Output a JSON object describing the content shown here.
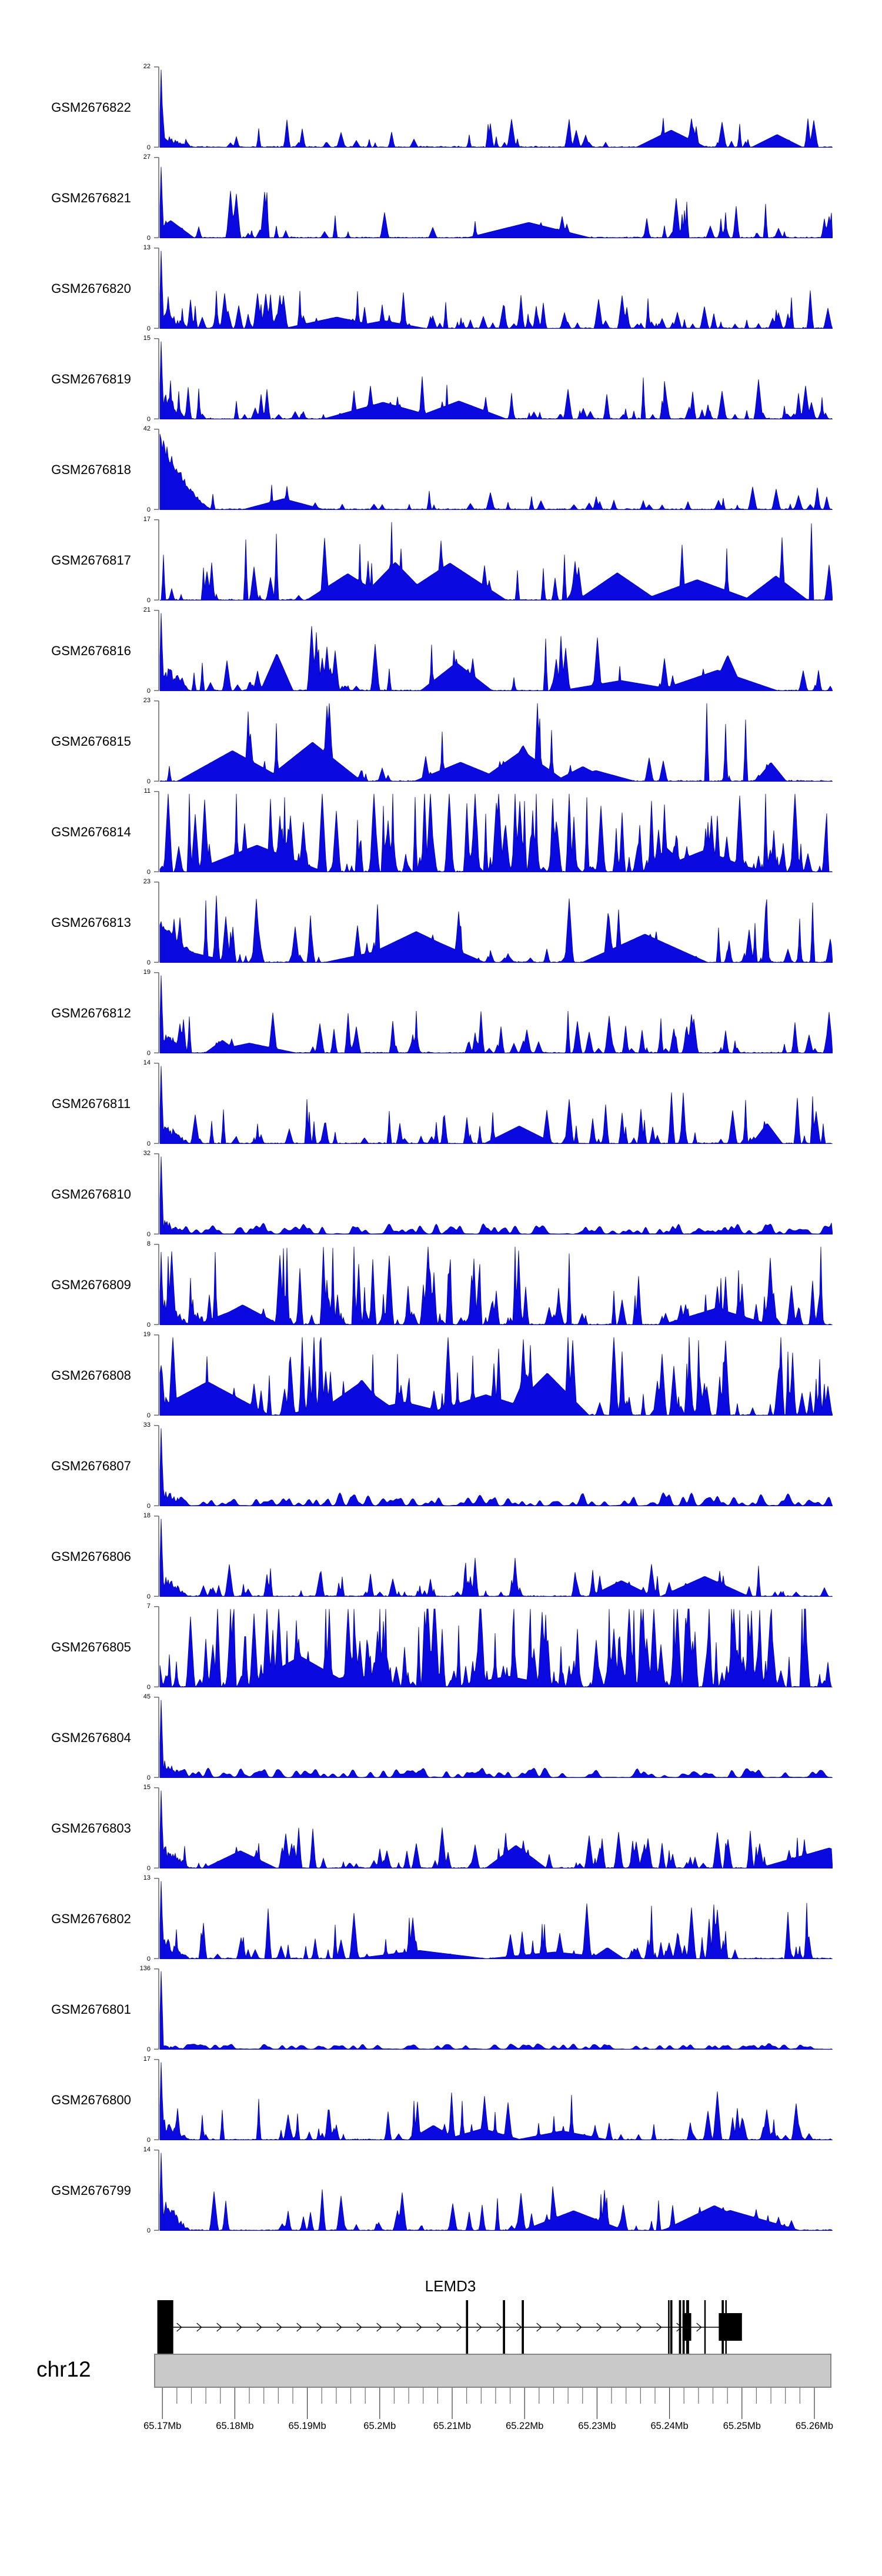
{
  "figure_type": "genome-browser-coverage-figure",
  "chart_data": {
    "type": "area",
    "title": "",
    "y_min_label": "0",
    "tracks": [
      {
        "label": "GSM2676822",
        "ymax": 22,
        "style": {
          "seed": 20,
          "left": "spike",
          "leftH": 0.96,
          "tail": 0.22,
          "density": 0.55,
          "amp": 0.3,
          "mounds": 2,
          "moundAmp": 0.4
        }
      },
      {
        "label": "GSM2676821",
        "ymax": 27,
        "style": {
          "seed": 31,
          "left": "spike",
          "leftH": 0.88,
          "tail": 0.3,
          "density": 0.55,
          "amp": 0.42,
          "mounds": 2,
          "moundAmp": 0.4
        }
      },
      {
        "label": "GSM2676820",
        "ymax": 13,
        "style": {
          "seed": 42,
          "left": "spike",
          "leftH": 0.96,
          "tail": 0.3,
          "density": 1.15,
          "amp": 0.33,
          "mounds": 2,
          "moundAmp": 0.4
        }
      },
      {
        "label": "GSM2676819",
        "ymax": 15,
        "style": {
          "seed": 53,
          "left": "spike",
          "leftH": 0.96,
          "tail": 0.4,
          "density": 0.95,
          "amp": 0.38,
          "mounds": 3,
          "moundAmp": 0.45
        }
      },
      {
        "label": "GSM2676818",
        "ymax": 42,
        "style": {
          "seed": 64,
          "left": "mound",
          "leftH": 0.97,
          "tail": 0.3,
          "density": 0.45,
          "amp": 0.22,
          "mounds": 1,
          "moundAmp": 0.35
        }
      },
      {
        "label": "GSM2676817",
        "ymax": 17,
        "style": {
          "seed": 75,
          "left": "none",
          "tail": 0,
          "density": 0.6,
          "amp": 0.85,
          "mounds": 7,
          "moundAmp": 0.85,
          "right": true
        }
      },
      {
        "label": "GSM2676816",
        "ymax": 21,
        "style": {
          "seed": 86,
          "left": "spike",
          "leftH": 0.96,
          "tail": 0.5,
          "density": 0.6,
          "amp": 0.6,
          "mounds": 5,
          "moundAmp": 0.8
        }
      },
      {
        "label": "GSM2676815",
        "ymax": 23,
        "style": {
          "seed": 97,
          "left": "none",
          "tail": 0,
          "density": 0.38,
          "amp": 1.0,
          "mounds": 9,
          "moundAmp": 0.85
        }
      },
      {
        "label": "GSM2676814",
        "ymax": 11,
        "style": {
          "seed": 108,
          "left": "none",
          "tail": 0,
          "density": 2.1,
          "amp": 0.9,
          "mounds": 4,
          "moundAmp": 0.6
        }
      },
      {
        "label": "GSM2676813",
        "ymax": 23,
        "style": {
          "seed": 119,
          "left": "mound",
          "leftH": 0.55,
          "tail": 0.4,
          "density": 0.9,
          "amp": 0.62,
          "mounds": 5,
          "moundAmp": 0.65
        }
      },
      {
        "label": "GSM2676812",
        "ymax": 19,
        "style": {
          "seed": 130,
          "left": "spike",
          "leftH": 0.96,
          "tail": 0.35,
          "density": 0.8,
          "amp": 0.4,
          "mounds": 2,
          "moundAmp": 0.45
        }
      },
      {
        "label": "GSM2676811",
        "ymax": 14,
        "style": {
          "seed": 141,
          "left": "spike",
          "leftH": 0.96,
          "tail": 0.35,
          "density": 0.85,
          "amp": 0.46,
          "mounds": 2,
          "moundAmp": 0.45
        }
      },
      {
        "label": "GSM2676810",
        "ymax": 32,
        "style": {
          "seed": 152,
          "left": "spike",
          "leftH": 0.96,
          "tail": 0.22,
          "density": 1.2,
          "amp": 0.11,
          "mounds": 0,
          "smooth": true
        }
      },
      {
        "label": "GSM2676809",
        "ymax": 8,
        "style": {
          "seed": 163,
          "left": "spike",
          "leftH": 0.9,
          "tail": 0.45,
          "density": 1.5,
          "amp": 0.78,
          "mounds": 3,
          "moundAmp": 0.7
        }
      },
      {
        "label": "GSM2676808",
        "ymax": 19,
        "style": {
          "seed": 174,
          "left": "spike",
          "leftH": 0.62,
          "tail": 0.5,
          "density": 1.3,
          "amp": 0.88,
          "mounds": 8,
          "moundAmp": 0.9
        }
      },
      {
        "label": "GSM2676807",
        "ymax": 33,
        "style": {
          "seed": 185,
          "left": "spike",
          "leftH": 0.96,
          "tail": 0.26,
          "density": 1.2,
          "amp": 0.13,
          "mounds": 0,
          "smooth": true
        }
      },
      {
        "label": "GSM2676806",
        "ymax": 18,
        "style": {
          "seed": 196,
          "left": "spike",
          "leftH": 0.96,
          "tail": 0.35,
          "density": 0.75,
          "amp": 0.34,
          "mounds": 2,
          "moundAmp": 0.5
        }
      },
      {
        "label": "GSM2676805",
        "ymax": 7,
        "style": {
          "seed": 207,
          "left": "none",
          "tail": 0,
          "density": 2.4,
          "amp": 1.0,
          "mounds": 3,
          "moundAmp": 0.8
        }
      },
      {
        "label": "GSM2676804",
        "ymax": 45,
        "style": {
          "seed": 218,
          "left": "spike",
          "leftH": 0.96,
          "tail": 0.28,
          "density": 1.2,
          "amp": 0.09,
          "mounds": 0,
          "smooth": true
        }
      },
      {
        "label": "GSM2676803",
        "ymax": 15,
        "style": {
          "seed": 229,
          "left": "spike",
          "leftH": 0.96,
          "tail": 0.4,
          "density": 0.9,
          "amp": 0.38,
          "mounds": 3,
          "moundAmp": 0.5
        }
      },
      {
        "label": "GSM2676802",
        "ymax": 13,
        "style": {
          "seed": 240,
          "left": "spike",
          "leftH": 0.96,
          "tail": 0.35,
          "density": 0.85,
          "amp": 0.52,
          "mounds": 3,
          "moundAmp": 0.55
        }
      },
      {
        "label": "GSM2676801",
        "ymax": 136,
        "style": {
          "seed": 251,
          "left": "spike",
          "leftH": 0.97,
          "tail": 0.06,
          "density": 1.0,
          "amp": 0.035,
          "mounds": 0,
          "smooth": true
        }
      },
      {
        "label": "GSM2676800",
        "ymax": 17,
        "style": {
          "seed": 262,
          "left": "spike",
          "leftH": 0.96,
          "tail": 0.35,
          "density": 0.75,
          "amp": 0.44,
          "mounds": 3,
          "moundAmp": 0.5
        }
      },
      {
        "label": "GSM2676799",
        "ymax": 14,
        "style": {
          "seed": 273,
          "left": "spike",
          "leftH": 0.96,
          "tail": 0.5,
          "density": 0.65,
          "amp": 0.4,
          "mounds": 3,
          "moundAmp": 0.55
        }
      }
    ],
    "gene": {
      "name": "LEMD3",
      "strand": "right",
      "exons_full_mb": [
        [
          65.1693,
          65.1715
        ],
        [
          65.2119,
          65.2122
        ],
        [
          65.217,
          65.2173
        ],
        [
          65.2196,
          65.2199
        ],
        [
          65.2398,
          65.24
        ],
        [
          65.2401,
          65.2404
        ],
        [
          65.2413,
          65.2416
        ],
        [
          65.2418,
          65.2421
        ],
        [
          65.2423,
          65.2427
        ],
        [
          65.2448,
          65.245
        ],
        [
          65.2472,
          65.2475
        ],
        [
          65.2477,
          65.2479
        ]
      ],
      "exons_mid_mb": [
        [
          65.2418,
          65.243
        ],
        [
          65.2468,
          65.25
        ]
      ],
      "intron_mb": [
        65.1715,
        65.2472
      ]
    },
    "chromosome": {
      "name": "chr12"
    },
    "axis": {
      "unit": "Mb",
      "start_mb": 65.17,
      "end_mb": 65.26,
      "major_step_mb": 0.01,
      "minor_step_mb": 0.002,
      "labels": [
        "65.17Mb",
        "65.18Mb",
        "65.19Mb",
        "65.2Mb",
        "65.21Mb",
        "65.22Mb",
        "65.23Mb",
        "65.24Mb",
        "65.25Mb",
        "65.26Mb"
      ]
    },
    "colors": {
      "signal": "#0a0ae0",
      "signal_edge": "#0000b8",
      "axis_tick": "#6e6e6e",
      "ideogram_fill": "#c9c9c9",
      "ideogram_border": "#858585",
      "text": "#000000",
      "gene": "#000000"
    }
  }
}
